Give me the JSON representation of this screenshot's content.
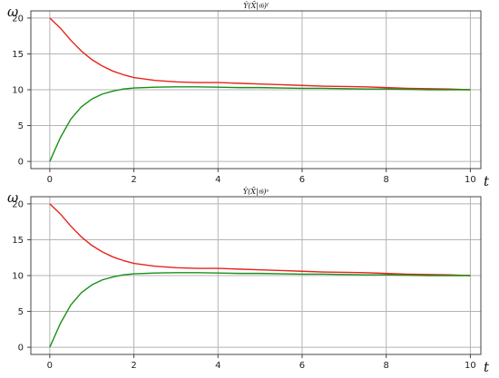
{
  "chart_data": [
    {
      "type": "line",
      "title": "Ŷ(X̄|𝔊)ᶠ",
      "xlabel": "t",
      "ylabel": "ω",
      "xlim": [
        -0.45,
        10.25
      ],
      "ylim": [
        -1,
        21
      ],
      "xticks": [
        0,
        2,
        4,
        6,
        8,
        10
      ],
      "yticks": [
        0,
        5,
        10,
        15,
        20
      ],
      "grid": true,
      "series": [
        {
          "color": "#e8231c",
          "x": [
            0,
            0.25,
            0.5,
            0.75,
            1,
            1.25,
            1.5,
            1.75,
            2,
            2.5,
            3,
            3.5,
            4,
            4.5,
            5,
            5.5,
            6,
            6.5,
            7,
            7.5,
            8,
            8.5,
            9,
            9.5,
            10
          ],
          "values": [
            20.0,
            18.6,
            16.9,
            15.4,
            14.2,
            13.3,
            12.6,
            12.1,
            11.7,
            11.3,
            11.1,
            11.0,
            11.0,
            10.9,
            10.8,
            10.7,
            10.6,
            10.5,
            10.45,
            10.4,
            10.3,
            10.2,
            10.15,
            10.1,
            10.0
          ]
        },
        {
          "color": "#169016",
          "x": [
            0,
            0.25,
            0.5,
            0.75,
            1,
            1.25,
            1.5,
            1.75,
            2,
            2.5,
            3,
            3.5,
            4,
            4.5,
            5,
            5.5,
            6,
            6.5,
            7,
            7.5,
            8,
            8.5,
            9,
            9.5,
            10
          ],
          "values": [
            0.0,
            3.3,
            5.9,
            7.6,
            8.7,
            9.4,
            9.8,
            10.1,
            10.25,
            10.35,
            10.4,
            10.4,
            10.35,
            10.3,
            10.3,
            10.25,
            10.2,
            10.2,
            10.15,
            10.1,
            10.1,
            10.05,
            10.0,
            10.0,
            10.0
          ]
        }
      ]
    },
    {
      "type": "line",
      "title": "Ŷ(X̄|𝔊)ˢ",
      "xlabel": "t",
      "ylabel": "ω",
      "xlim": [
        -0.45,
        10.25
      ],
      "ylim": [
        -1,
        21
      ],
      "xticks": [
        0,
        2,
        4,
        6,
        8,
        10
      ],
      "yticks": [
        0,
        5,
        10,
        15,
        20
      ],
      "grid": true,
      "series": [
        {
          "color": "#e8231c",
          "x": [
            0,
            0.25,
            0.5,
            0.75,
            1,
            1.25,
            1.5,
            1.75,
            2,
            2.5,
            3,
            3.5,
            4,
            4.5,
            5,
            5.5,
            6,
            6.5,
            7,
            7.5,
            8,
            8.5,
            9,
            9.5,
            10
          ],
          "values": [
            20.0,
            18.6,
            16.9,
            15.4,
            14.2,
            13.3,
            12.6,
            12.1,
            11.7,
            11.3,
            11.1,
            11.0,
            11.0,
            10.9,
            10.8,
            10.7,
            10.6,
            10.5,
            10.45,
            10.4,
            10.3,
            10.2,
            10.15,
            10.1,
            10.0
          ]
        },
        {
          "color": "#169016",
          "x": [
            0,
            0.25,
            0.5,
            0.75,
            1,
            1.25,
            1.5,
            1.75,
            2,
            2.5,
            3,
            3.5,
            4,
            4.5,
            5,
            5.5,
            6,
            6.5,
            7,
            7.5,
            8,
            8.5,
            9,
            9.5,
            10
          ],
          "values": [
            0.0,
            3.3,
            5.9,
            7.6,
            8.7,
            9.4,
            9.8,
            10.1,
            10.25,
            10.35,
            10.4,
            10.4,
            10.35,
            10.3,
            10.3,
            10.25,
            10.2,
            10.2,
            10.15,
            10.1,
            10.1,
            10.05,
            10.0,
            10.0,
            10.0
          ]
        }
      ]
    }
  ]
}
